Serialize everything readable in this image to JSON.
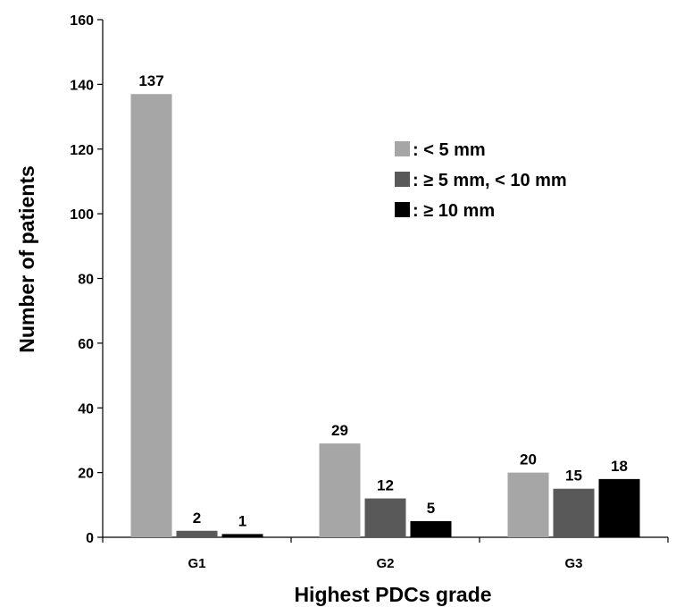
{
  "chart_data": {
    "type": "bar",
    "title": "",
    "xlabel": "Highest PDCs grade",
    "ylabel": "Number of patients",
    "categories": [
      "G1",
      "G2",
      "G3"
    ],
    "ylim": [
      0,
      160
    ],
    "yticks": [
      0,
      20,
      40,
      60,
      80,
      100,
      120,
      140,
      160
    ],
    "grid": false,
    "legend_position": "upper-right",
    "series": [
      {
        "name": ": < 5 mm",
        "color": "#a6a6a6",
        "values": [
          137,
          29,
          20
        ]
      },
      {
        "name": ": ≥ 5 mm, < 10 mm",
        "color": "#595959",
        "values": [
          2,
          12,
          15
        ]
      },
      {
        "name": ": ≥ 10 mm",
        "color": "#000000",
        "values": [
          1,
          5,
          18
        ]
      }
    ]
  }
}
